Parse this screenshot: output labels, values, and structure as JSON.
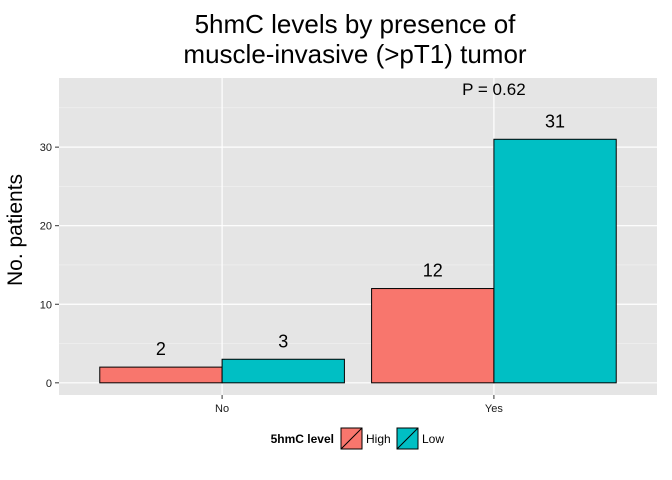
{
  "chart_data": {
    "type": "bar",
    "title_line1": "5hmC levels by presence of",
    "title_line2": "muscle-invasive (>pT1) tumor",
    "xlabel": "",
    "ylabel": "No. patients",
    "categories": [
      "No",
      "Yes"
    ],
    "series": [
      {
        "name": "High",
        "values": [
          2,
          12
        ],
        "color": "#F8766D"
      },
      {
        "name": "Low",
        "values": [
          3,
          31
        ],
        "color": "#00BFC4"
      }
    ],
    "ylim": [
      -1.55,
      38.8
    ],
    "yticks": [
      0,
      10,
      20,
      30
    ],
    "grid": true,
    "annotation": "P = 0.62",
    "annotation_value": 37.4,
    "legend": {
      "title": "5hmC level",
      "position": "bottom"
    },
    "colors": {
      "panel": "#E5E5E5",
      "grid_major": "#FFFFFF",
      "grid_minor": "#F2F2F2",
      "bar_outline": "#000000"
    }
  }
}
